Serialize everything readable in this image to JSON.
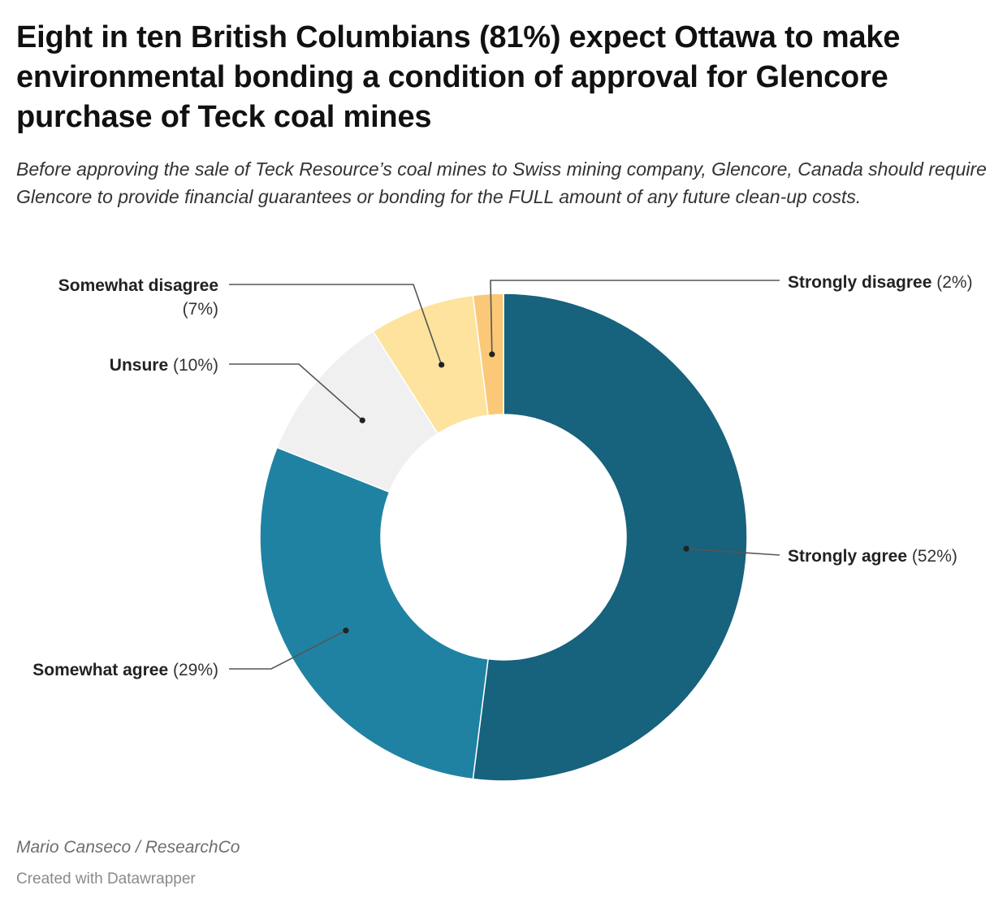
{
  "header": {
    "title": "Eight in ten British Columbians (81%) expect Ottawa to make environmental bonding a condition of approval for Glencore purchase of Teck coal mines",
    "subtitle": "Before approving the sale of Teck Resource’s coal mines to Swiss mining company, Glencore, Canada should require Glencore to provide financial guarantees or bonding for the FULL amount of any future clean-up costs."
  },
  "footer": {
    "byline": "Mario Canseco / ResearchCo",
    "credit": "Created with Datawrapper"
  },
  "chart_data": {
    "type": "pie",
    "variant": "donut",
    "slices": [
      {
        "name": "Strongly agree",
        "value": 52,
        "label": "(52%)",
        "color": "#17627c"
      },
      {
        "name": "Somewhat agree",
        "value": 29,
        "label": "(29%)",
        "color": "#1f82a2"
      },
      {
        "name": "Unsure",
        "value": 10,
        "label": "(10%)",
        "color": "#f0f0f0"
      },
      {
        "name": "Somewhat disagree",
        "value": 7,
        "label": "(7%)",
        "color": "#fee39f"
      },
      {
        "name": "Strongly disagree",
        "value": 2,
        "label": "(2%)",
        "color": "#fbc878"
      }
    ]
  }
}
